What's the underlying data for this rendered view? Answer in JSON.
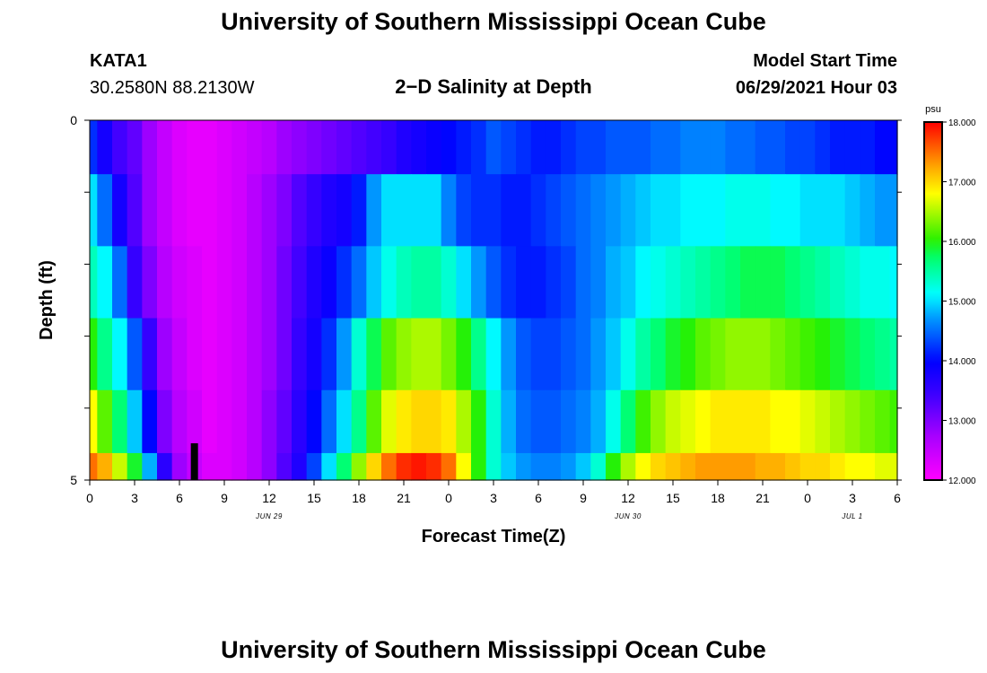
{
  "title": "University of Southern Mississippi Ocean Cube",
  "footer_title": "University of Southern Mississippi Ocean Cube",
  "station": {
    "name": "KATA1",
    "coords": "30.2580N  88.2130W"
  },
  "subtitle": "2−D Salinity at Depth",
  "model_start": {
    "label": "Model Start Time",
    "value": "06/29/2021 Hour 03"
  },
  "chart_data": {
    "type": "heatmap",
    "title": "2−D Salinity at Depth",
    "xlabel": "Forecast Time(Z)",
    "ylabel": "Depth (ft)",
    "x_hours": [
      0,
      1,
      2,
      3,
      4,
      5,
      6,
      7,
      8,
      9,
      10,
      11,
      12,
      13,
      14,
      15,
      16,
      17,
      18,
      19,
      20,
      21,
      22,
      23,
      24,
      25,
      26,
      27,
      28,
      29,
      30,
      31,
      32,
      33,
      34,
      35,
      36,
      37,
      38,
      39,
      40,
      41,
      42,
      43,
      44,
      45,
      46,
      47,
      48,
      49,
      50,
      51,
      52,
      53,
      54
    ],
    "x_tick_labels": [
      "0",
      "3",
      "6",
      "9",
      "12",
      "15",
      "18",
      "21",
      "0",
      "3",
      "6",
      "9",
      "12",
      "15",
      "18",
      "21",
      "0",
      "3",
      "6"
    ],
    "x_tick_hours": [
      0,
      3,
      6,
      9,
      12,
      15,
      18,
      21,
      24,
      27,
      30,
      33,
      36,
      39,
      42,
      45,
      48,
      51,
      54
    ],
    "date_labels": [
      {
        "text": "JUN 29",
        "hour": 12
      },
      {
        "text": "JUN 30",
        "hour": 36
      },
      {
        "text": "JUL 1",
        "hour": 51
      }
    ],
    "y_tick_labels": [
      "0",
      "5"
    ],
    "ylim": [
      0,
      5
    ],
    "depth_layers_ft": [
      0.25,
      1.25,
      2.25,
      3.25,
      4.25,
      5.0
    ],
    "vmin": 12.0,
    "vmax": 18.0,
    "colorbar_unit": "psu",
    "colorbar_labels": [
      "18.000",
      "17.000",
      "16.000",
      "15.000",
      "14.000",
      "13.000",
      "12.000"
    ],
    "colorbar_values": [
      18,
      17,
      16,
      15,
      14,
      13,
      12
    ],
    "time_marker_hour": 7,
    "values": [
      [
        14.2,
        13.8,
        13.4,
        13.2,
        12.8,
        12.5,
        12.3,
        12.2,
        12.2,
        12.3,
        12.4,
        12.5,
        12.6,
        12.8,
        12.9,
        13.0,
        13.1,
        13.2,
        13.3,
        13.4,
        13.5,
        13.7,
        13.8,
        13.9,
        14.0,
        14.1,
        14.2,
        14.4,
        14.3,
        14.2,
        14.1,
        14.1,
        14.2,
        14.3,
        14.3,
        14.4,
        14.4,
        14.4,
        14.5,
        14.5,
        14.6,
        14.6,
        14.6,
        14.5,
        14.5,
        14.4,
        14.4,
        14.3,
        14.3,
        14.2,
        14.1,
        14.1,
        14.1,
        14.0,
        14.0
      ],
      [
        15.0,
        14.5,
        13.8,
        13.3,
        12.8,
        12.5,
        12.3,
        12.2,
        12.2,
        12.3,
        12.4,
        12.6,
        12.8,
        13.0,
        13.3,
        13.5,
        13.7,
        13.8,
        14.1,
        14.7,
        15.0,
        15.0,
        15.0,
        15.0,
        14.6,
        14.3,
        14.2,
        14.2,
        14.1,
        14.1,
        14.2,
        14.3,
        14.4,
        14.5,
        14.6,
        14.7,
        14.8,
        14.9,
        15.0,
        15.0,
        15.1,
        15.1,
        15.1,
        15.2,
        15.2,
        15.2,
        15.1,
        15.1,
        15.0,
        15.0,
        15.0,
        14.9,
        14.8,
        14.7,
        14.7
      ],
      [
        15.4,
        15.1,
        14.5,
        13.5,
        13.0,
        12.6,
        12.4,
        12.3,
        12.2,
        12.3,
        12.4,
        12.6,
        12.8,
        13.1,
        13.4,
        13.7,
        13.9,
        14.2,
        14.5,
        14.9,
        15.2,
        15.4,
        15.5,
        15.5,
        15.3,
        15.0,
        14.7,
        14.4,
        14.2,
        14.1,
        14.1,
        14.2,
        14.3,
        14.5,
        14.6,
        14.8,
        14.9,
        15.1,
        15.2,
        15.3,
        15.4,
        15.5,
        15.6,
        15.7,
        15.8,
        15.8,
        15.8,
        15.7,
        15.6,
        15.5,
        15.4,
        15.3,
        15.2,
        15.2,
        15.1
      ],
      [
        16.0,
        15.6,
        15.1,
        14.4,
        13.5,
        12.8,
        12.5,
        12.3,
        12.2,
        12.3,
        12.4,
        12.6,
        12.8,
        13.1,
        13.5,
        13.8,
        14.2,
        14.7,
        15.3,
        15.8,
        16.2,
        16.4,
        16.5,
        16.5,
        16.3,
        16.0,
        15.6,
        15.1,
        14.7,
        14.4,
        14.3,
        14.3,
        14.4,
        14.5,
        14.7,
        14.9,
        15.2,
        15.5,
        15.7,
        15.9,
        16.0,
        16.2,
        16.3,
        16.4,
        16.4,
        16.4,
        16.3,
        16.2,
        16.1,
        16.0,
        15.9,
        15.8,
        15.7,
        15.6,
        15.5
      ],
      [
        16.8,
        16.2,
        15.7,
        14.9,
        14.0,
        13.0,
        12.6,
        12.4,
        12.2,
        12.3,
        12.4,
        12.6,
        12.9,
        13.2,
        13.6,
        14.0,
        14.5,
        15.0,
        15.6,
        16.2,
        16.7,
        16.9,
        17.0,
        17.0,
        16.9,
        16.5,
        16.0,
        15.3,
        14.8,
        14.5,
        14.4,
        14.4,
        14.5,
        14.6,
        14.8,
        15.2,
        15.7,
        16.1,
        16.4,
        16.6,
        16.7,
        16.8,
        16.9,
        16.9,
        16.9,
        16.9,
        16.8,
        16.8,
        16.7,
        16.6,
        16.5,
        16.4,
        16.3,
        16.2,
        16.1
      ],
      [
        17.5,
        17.2,
        16.6,
        15.9,
        14.8,
        13.6,
        12.8,
        12.5,
        12.3,
        12.3,
        12.4,
        12.6,
        12.9,
        13.3,
        13.7,
        14.3,
        15.0,
        15.7,
        16.4,
        17.0,
        17.5,
        17.8,
        17.9,
        17.8,
        17.5,
        16.8,
        16.0,
        15.3,
        14.9,
        14.7,
        14.6,
        14.6,
        14.7,
        14.9,
        15.3,
        16.0,
        16.5,
        16.8,
        17.0,
        17.1,
        17.2,
        17.3,
        17.3,
        17.3,
        17.3,
        17.2,
        17.2,
        17.1,
        17.0,
        17.0,
        16.9,
        16.8,
        16.8,
        16.7,
        16.7
      ]
    ]
  }
}
